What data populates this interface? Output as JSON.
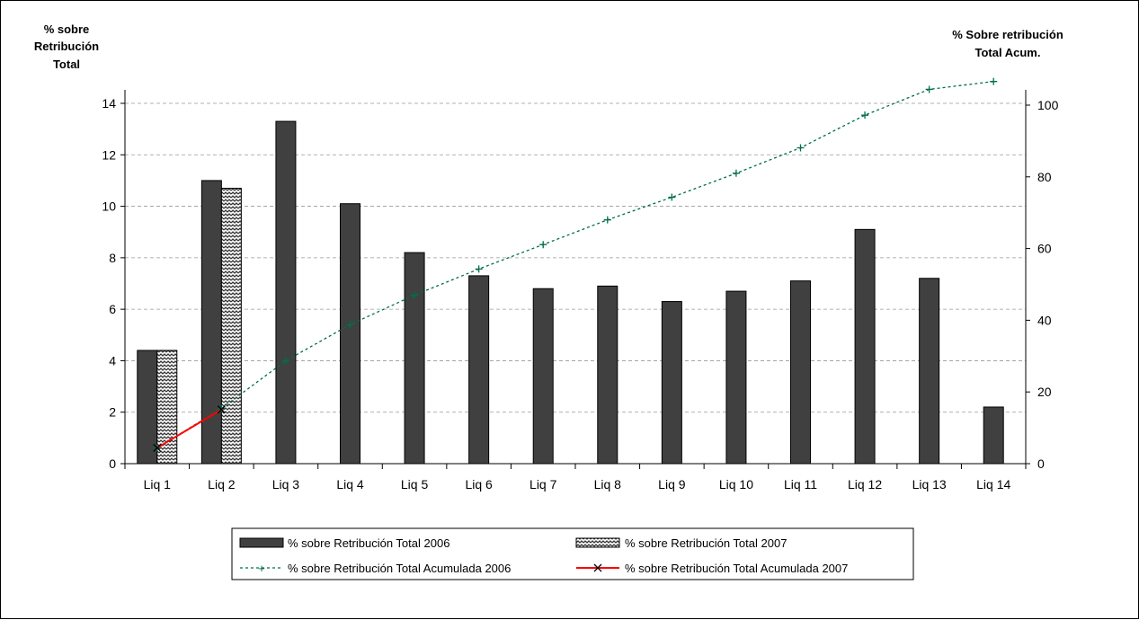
{
  "chart_data": {
    "type": "bar",
    "categories": [
      "Liq 1",
      "Liq 2",
      "Liq 3",
      "Liq 4",
      "Liq 5",
      "Liq 6",
      "Liq 7",
      "Liq 8",
      "Liq 9",
      "Liq 10",
      "Liq 11",
      "Liq 12",
      "Liq 13",
      "Liq 14"
    ],
    "y_left_title": [
      "% sobre",
      "Retribución",
      "Total"
    ],
    "y_right_title": [
      "% Sobre retribución",
      "Total Acum."
    ],
    "ylim_left": [
      0,
      14
    ],
    "yticks_left": [
      0,
      2,
      4,
      6,
      8,
      10,
      12,
      14
    ],
    "ylim_right": [
      0,
      100
    ],
    "yticks_right": [
      0,
      20,
      40,
      60,
      80,
      100
    ],
    "grid": "dashed horizontal",
    "legend_position": "bottom-center",
    "series": [
      {
        "name": "% sobre Retribución Total 2006",
        "kind": "bar",
        "axis": "left",
        "color": "#404040",
        "values": [
          4.4,
          11.0,
          13.3,
          10.1,
          8.2,
          7.3,
          6.8,
          6.9,
          6.3,
          6.7,
          7.1,
          9.1,
          7.2,
          2.2
        ]
      },
      {
        "name": "% sobre Retribución Total 2007",
        "kind": "bar",
        "axis": "left",
        "pattern": "zigzag",
        "values": [
          4.4,
          10.7,
          null,
          null,
          null,
          null,
          null,
          null,
          null,
          null,
          null,
          null,
          null,
          null
        ]
      },
      {
        "name": "% sobre Retribución Total Acumulada 2006",
        "kind": "line",
        "axis": "right",
        "color": "#006d4e",
        "marker": "+",
        "values": [
          4.4,
          15.4,
          28.7,
          38.8,
          47.0,
          54.3,
          61.1,
          68.0,
          74.3,
          81.0,
          88.1,
          97.2,
          104.4,
          106.6
        ]
      },
      {
        "name": "% sobre Retribución Total Acumulada 2007",
        "kind": "line",
        "axis": "right",
        "color": "#ff0000",
        "marker": "x",
        "values": [
          4.4,
          15.1,
          null,
          null,
          null,
          null,
          null,
          null,
          null,
          null,
          null,
          null,
          null,
          null
        ]
      }
    ]
  }
}
